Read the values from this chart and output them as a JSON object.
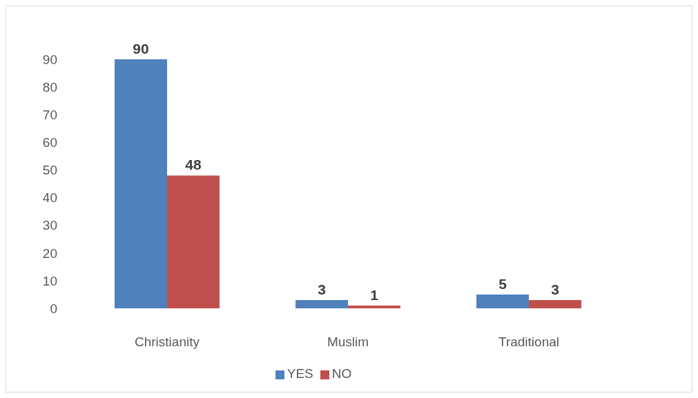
{
  "chart_data": {
    "type": "bar",
    "categories": [
      "Christianity",
      "Muslim",
      "Traditional"
    ],
    "series": [
      {
        "name": "YES",
        "color": "#4f81bd",
        "values": [
          90,
          3,
          5
        ]
      },
      {
        "name": "NO",
        "color": "#c0504d",
        "values": [
          48,
          1,
          3
        ]
      }
    ],
    "ylim": [
      0,
      90
    ],
    "yticks": [
      0,
      10,
      20,
      30,
      40,
      50,
      60,
      70,
      80,
      90
    ],
    "data_labels": true,
    "legend": "bottom"
  }
}
